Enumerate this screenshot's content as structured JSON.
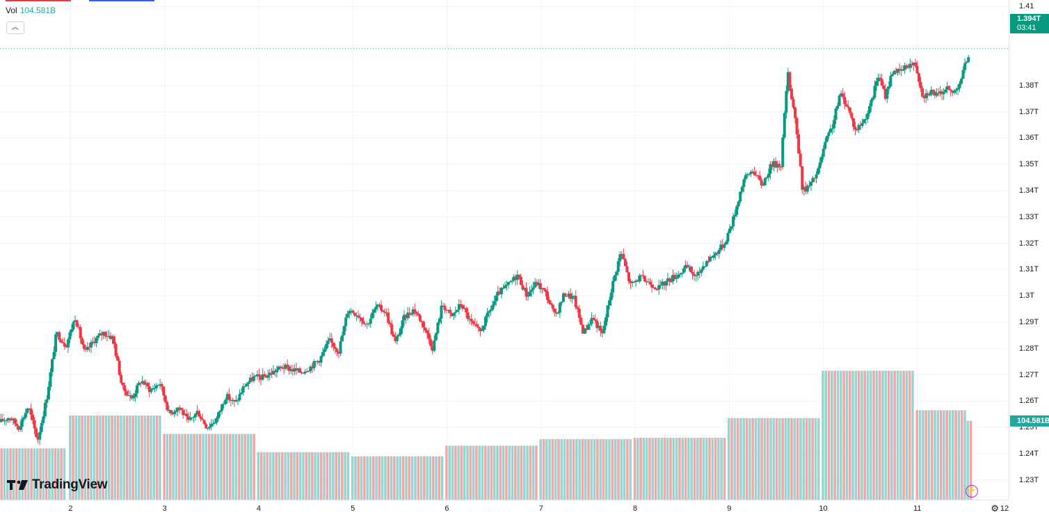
{
  "legend": {
    "vol_label": "Vol",
    "vol_value": "104.581B"
  },
  "last_price": {
    "value": "1.394T",
    "countdown": "03:41"
  },
  "volume_tag": "104.581B",
  "logo_text": "TradingView",
  "colors": {
    "up": "#089981",
    "down": "#f23645",
    "vol_up": "#99d5cf",
    "vol_down": "#f7a5a8",
    "grid": "#f0f3fa"
  },
  "icons": {
    "collapse": "chevron-up-icon",
    "bolt": "lightning-icon",
    "settings": "gear-icon"
  },
  "chart_data": {
    "type": "candlestick",
    "price_unit": "T",
    "y_ticks": [
      "1.41",
      "1.38T",
      "1.37T",
      "1.36T",
      "1.35T",
      "1.34T",
      "1.33T",
      "1.32T",
      "1.31T",
      "1.3T",
      "1.29T",
      "1.28T",
      "1.27T",
      "1.26T",
      "1.25T",
      "1.24T",
      "1.23T"
    ],
    "y_tick_values": [
      1.41,
      1.38,
      1.37,
      1.36,
      1.35,
      1.34,
      1.33,
      1.32,
      1.31,
      1.3,
      1.29,
      1.28,
      1.27,
      1.26,
      1.25,
      1.24,
      1.23
    ],
    "x_ticks": [
      "2",
      "3",
      "4",
      "5",
      "6",
      "7",
      "8",
      "9",
      "10",
      "11",
      "12"
    ],
    "x_tick_values": [
      2,
      3,
      4,
      5,
      6,
      7,
      8,
      9,
      10,
      11,
      12
    ],
    "y_range": [
      1.2225,
      1.4125
    ],
    "x_range": [
      1.25,
      11.97
    ],
    "close_path": [
      [
        1.25,
        1.252
      ],
      [
        1.35,
        1.254
      ],
      [
        1.45,
        1.25
      ],
      [
        1.55,
        1.258
      ],
      [
        1.65,
        1.245
      ],
      [
        1.75,
        1.262
      ],
      [
        1.85,
        1.286
      ],
      [
        1.95,
        1.281
      ],
      [
        2.05,
        1.292
      ],
      [
        2.15,
        1.278
      ],
      [
        2.25,
        1.283
      ],
      [
        2.35,
        1.286
      ],
      [
        2.45,
        1.284
      ],
      [
        2.55,
        1.265
      ],
      [
        2.65,
        1.261
      ],
      [
        2.75,
        1.268
      ],
      [
        2.85,
        1.264
      ],
      [
        2.95,
        1.267
      ],
      [
        3.05,
        1.255
      ],
      [
        3.15,
        1.258
      ],
      [
        3.25,
        1.252
      ],
      [
        3.35,
        1.256
      ],
      [
        3.45,
        1.25
      ],
      [
        3.55,
        1.253
      ],
      [
        3.65,
        1.262
      ],
      [
        3.75,
        1.259
      ],
      [
        3.85,
        1.266
      ],
      [
        3.95,
        1.269
      ],
      [
        4.05,
        1.269
      ],
      [
        4.15,
        1.271
      ],
      [
        4.25,
        1.273
      ],
      [
        4.35,
        1.272
      ],
      [
        4.45,
        1.271
      ],
      [
        4.55,
        1.273
      ],
      [
        4.65,
        1.276
      ],
      [
        4.75,
        1.283
      ],
      [
        4.85,
        1.279
      ],
      [
        4.95,
        1.295
      ],
      [
        5.05,
        1.293
      ],
      [
        5.15,
        1.289
      ],
      [
        5.25,
        1.296
      ],
      [
        5.35,
        1.294
      ],
      [
        5.45,
        1.282
      ],
      [
        5.55,
        1.292
      ],
      [
        5.65,
        1.295
      ],
      [
        5.75,
        1.289
      ],
      [
        5.85,
        1.28
      ],
      [
        5.95,
        1.297
      ],
      [
        6.05,
        1.292
      ],
      [
        6.15,
        1.297
      ],
      [
        6.25,
        1.29
      ],
      [
        6.35,
        1.286
      ],
      [
        6.45,
        1.294
      ],
      [
        6.55,
        1.301
      ],
      [
        6.65,
        1.304
      ],
      [
        6.75,
        1.308
      ],
      [
        6.85,
        1.3
      ],
      [
        6.95,
        1.305
      ],
      [
        7.05,
        1.301
      ],
      [
        7.15,
        1.292
      ],
      [
        7.25,
        1.301
      ],
      [
        7.35,
        1.299
      ],
      [
        7.45,
        1.286
      ],
      [
        7.55,
        1.292
      ],
      [
        7.65,
        1.285
      ],
      [
        7.75,
        1.303
      ],
      [
        7.85,
        1.317
      ],
      [
        7.95,
        1.304
      ],
      [
        8.05,
        1.307
      ],
      [
        8.15,
        1.305
      ],
      [
        8.25,
        1.303
      ],
      [
        8.35,
        1.306
      ],
      [
        8.45,
        1.308
      ],
      [
        8.55,
        1.311
      ],
      [
        8.65,
        1.307
      ],
      [
        8.75,
        1.313
      ],
      [
        8.85,
        1.316
      ],
      [
        8.95,
        1.32
      ],
      [
        9.05,
        1.33
      ],
      [
        9.15,
        1.344
      ],
      [
        9.25,
        1.348
      ],
      [
        9.35,
        1.342
      ],
      [
        9.45,
        1.35
      ],
      [
        9.55,
        1.35
      ],
      [
        9.62,
        1.385
      ],
      [
        9.7,
        1.368
      ],
      [
        9.78,
        1.34
      ],
      [
        9.86,
        1.342
      ],
      [
        9.94,
        1.347
      ],
      [
        10.02,
        1.358
      ],
      [
        10.1,
        1.365
      ],
      [
        10.18,
        1.377
      ],
      [
        10.26,
        1.372
      ],
      [
        10.34,
        1.363
      ],
      [
        10.42,
        1.366
      ],
      [
        10.5,
        1.372
      ],
      [
        10.58,
        1.384
      ],
      [
        10.66,
        1.376
      ],
      [
        10.74,
        1.386
      ],
      [
        10.82,
        1.385
      ],
      [
        10.9,
        1.388
      ],
      [
        10.98,
        1.388
      ],
      [
        11.06,
        1.376
      ],
      [
        11.14,
        1.378
      ],
      [
        11.22,
        1.376
      ],
      [
        11.3,
        1.379
      ],
      [
        11.38,
        1.377
      ],
      [
        11.46,
        1.382
      ],
      [
        11.56,
        1.394
      ]
    ],
    "volume_blocks": [
      {
        "x0": 1.25,
        "x1": 1.98,
        "value": 1.242
      },
      {
        "x0": 1.98,
        "x1": 2.98,
        "value": 1.2545
      },
      {
        "x0": 2.98,
        "x1": 3.98,
        "value": 1.2475
      },
      {
        "x0": 3.98,
        "x1": 4.98,
        "value": 1.2405
      },
      {
        "x0": 4.98,
        "x1": 5.98,
        "value": 1.239
      },
      {
        "x0": 5.98,
        "x1": 6.98,
        "value": 1.243
      },
      {
        "x0": 6.98,
        "x1": 7.98,
        "value": 1.2455
      },
      {
        "x0": 7.98,
        "x1": 8.98,
        "value": 1.246
      },
      {
        "x0": 8.98,
        "x1": 9.98,
        "value": 1.2535
      },
      {
        "x0": 9.98,
        "x1": 10.98,
        "value": 1.2715
      },
      {
        "x0": 10.98,
        "x1": 11.52,
        "value": 1.2565
      },
      {
        "x0": 11.52,
        "x1": 11.6,
        "value": 1.2525
      }
    ],
    "grid": true,
    "last_price_line": 1.394
  }
}
